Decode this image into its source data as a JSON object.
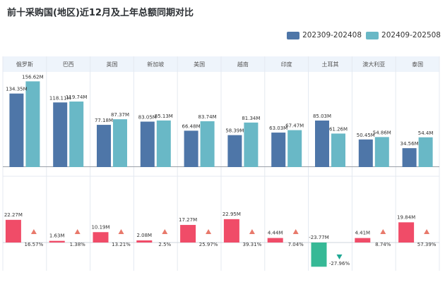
{
  "title": "前十采购国(地区)近12月及上年总额同期对比",
  "colors": {
    "prev": "#4e76a8",
    "curr": "#69b8c6",
    "increase": "#f04c68",
    "decrease": "#36b996",
    "header_bg": "#eef4fb"
  },
  "chart_data": {
    "type": "bar",
    "title": "前十采购国(地区)近12月及上年总额同期对比",
    "categories": [
      "俄罗斯",
      "巴西",
      "英国",
      "新加坡",
      "美国",
      "越南",
      "印度",
      "土耳其",
      "澳大利亚",
      "泰国"
    ],
    "series": [
      {
        "name": "202309-202408",
        "values": [
          134.35,
          118.11,
          77.18,
          83.05,
          66.48,
          58.39,
          63.03,
          85.03,
          50.45,
          34.56
        ],
        "labels": [
          "134.35M",
          "118.11M",
          "77.18M",
          "83.05M",
          "66.48M",
          "58.39M",
          "63.03M",
          "85.03M",
          "50.45M",
          "34.56M"
        ]
      },
      {
        "name": "202409-202508",
        "values": [
          156.62,
          119.74,
          87.37,
          85.13,
          83.74,
          81.34,
          67.47,
          61.26,
          54.86,
          54.4
        ],
        "labels": [
          "156.62M",
          "119.74M",
          "87.37M",
          "85.13M",
          "83.74M",
          "81.34M",
          "67.47M",
          "61.26M",
          "54.86M",
          "54.4M"
        ]
      }
    ],
    "difference": {
      "values": [
        22.27,
        1.63,
        10.19,
        2.08,
        17.27,
        22.95,
        4.44,
        -23.77,
        4.41,
        19.84
      ],
      "labels": [
        "22.27M",
        "1.63M",
        "10.19M",
        "2.08M",
        "17.27M",
        "22.95M",
        "4.44M",
        "-23.77M",
        "4.41M",
        "19.84M"
      ]
    },
    "growth_rate": {
      "values": [
        16.57,
        1.38,
        13.21,
        2.5,
        25.97,
        39.31,
        7.04,
        -27.96,
        8.74,
        57.39
      ],
      "labels": [
        "16.57%",
        "1.38%",
        "13.21%",
        "2.5%",
        "25.97%",
        "39.31%",
        "7.04%",
        "-27.96%",
        "8.74%",
        "57.39%"
      ]
    },
    "ylim_top": [
      0,
      170
    ],
    "ylim_bottom": [
      -27,
      27
    ],
    "units": "M"
  }
}
